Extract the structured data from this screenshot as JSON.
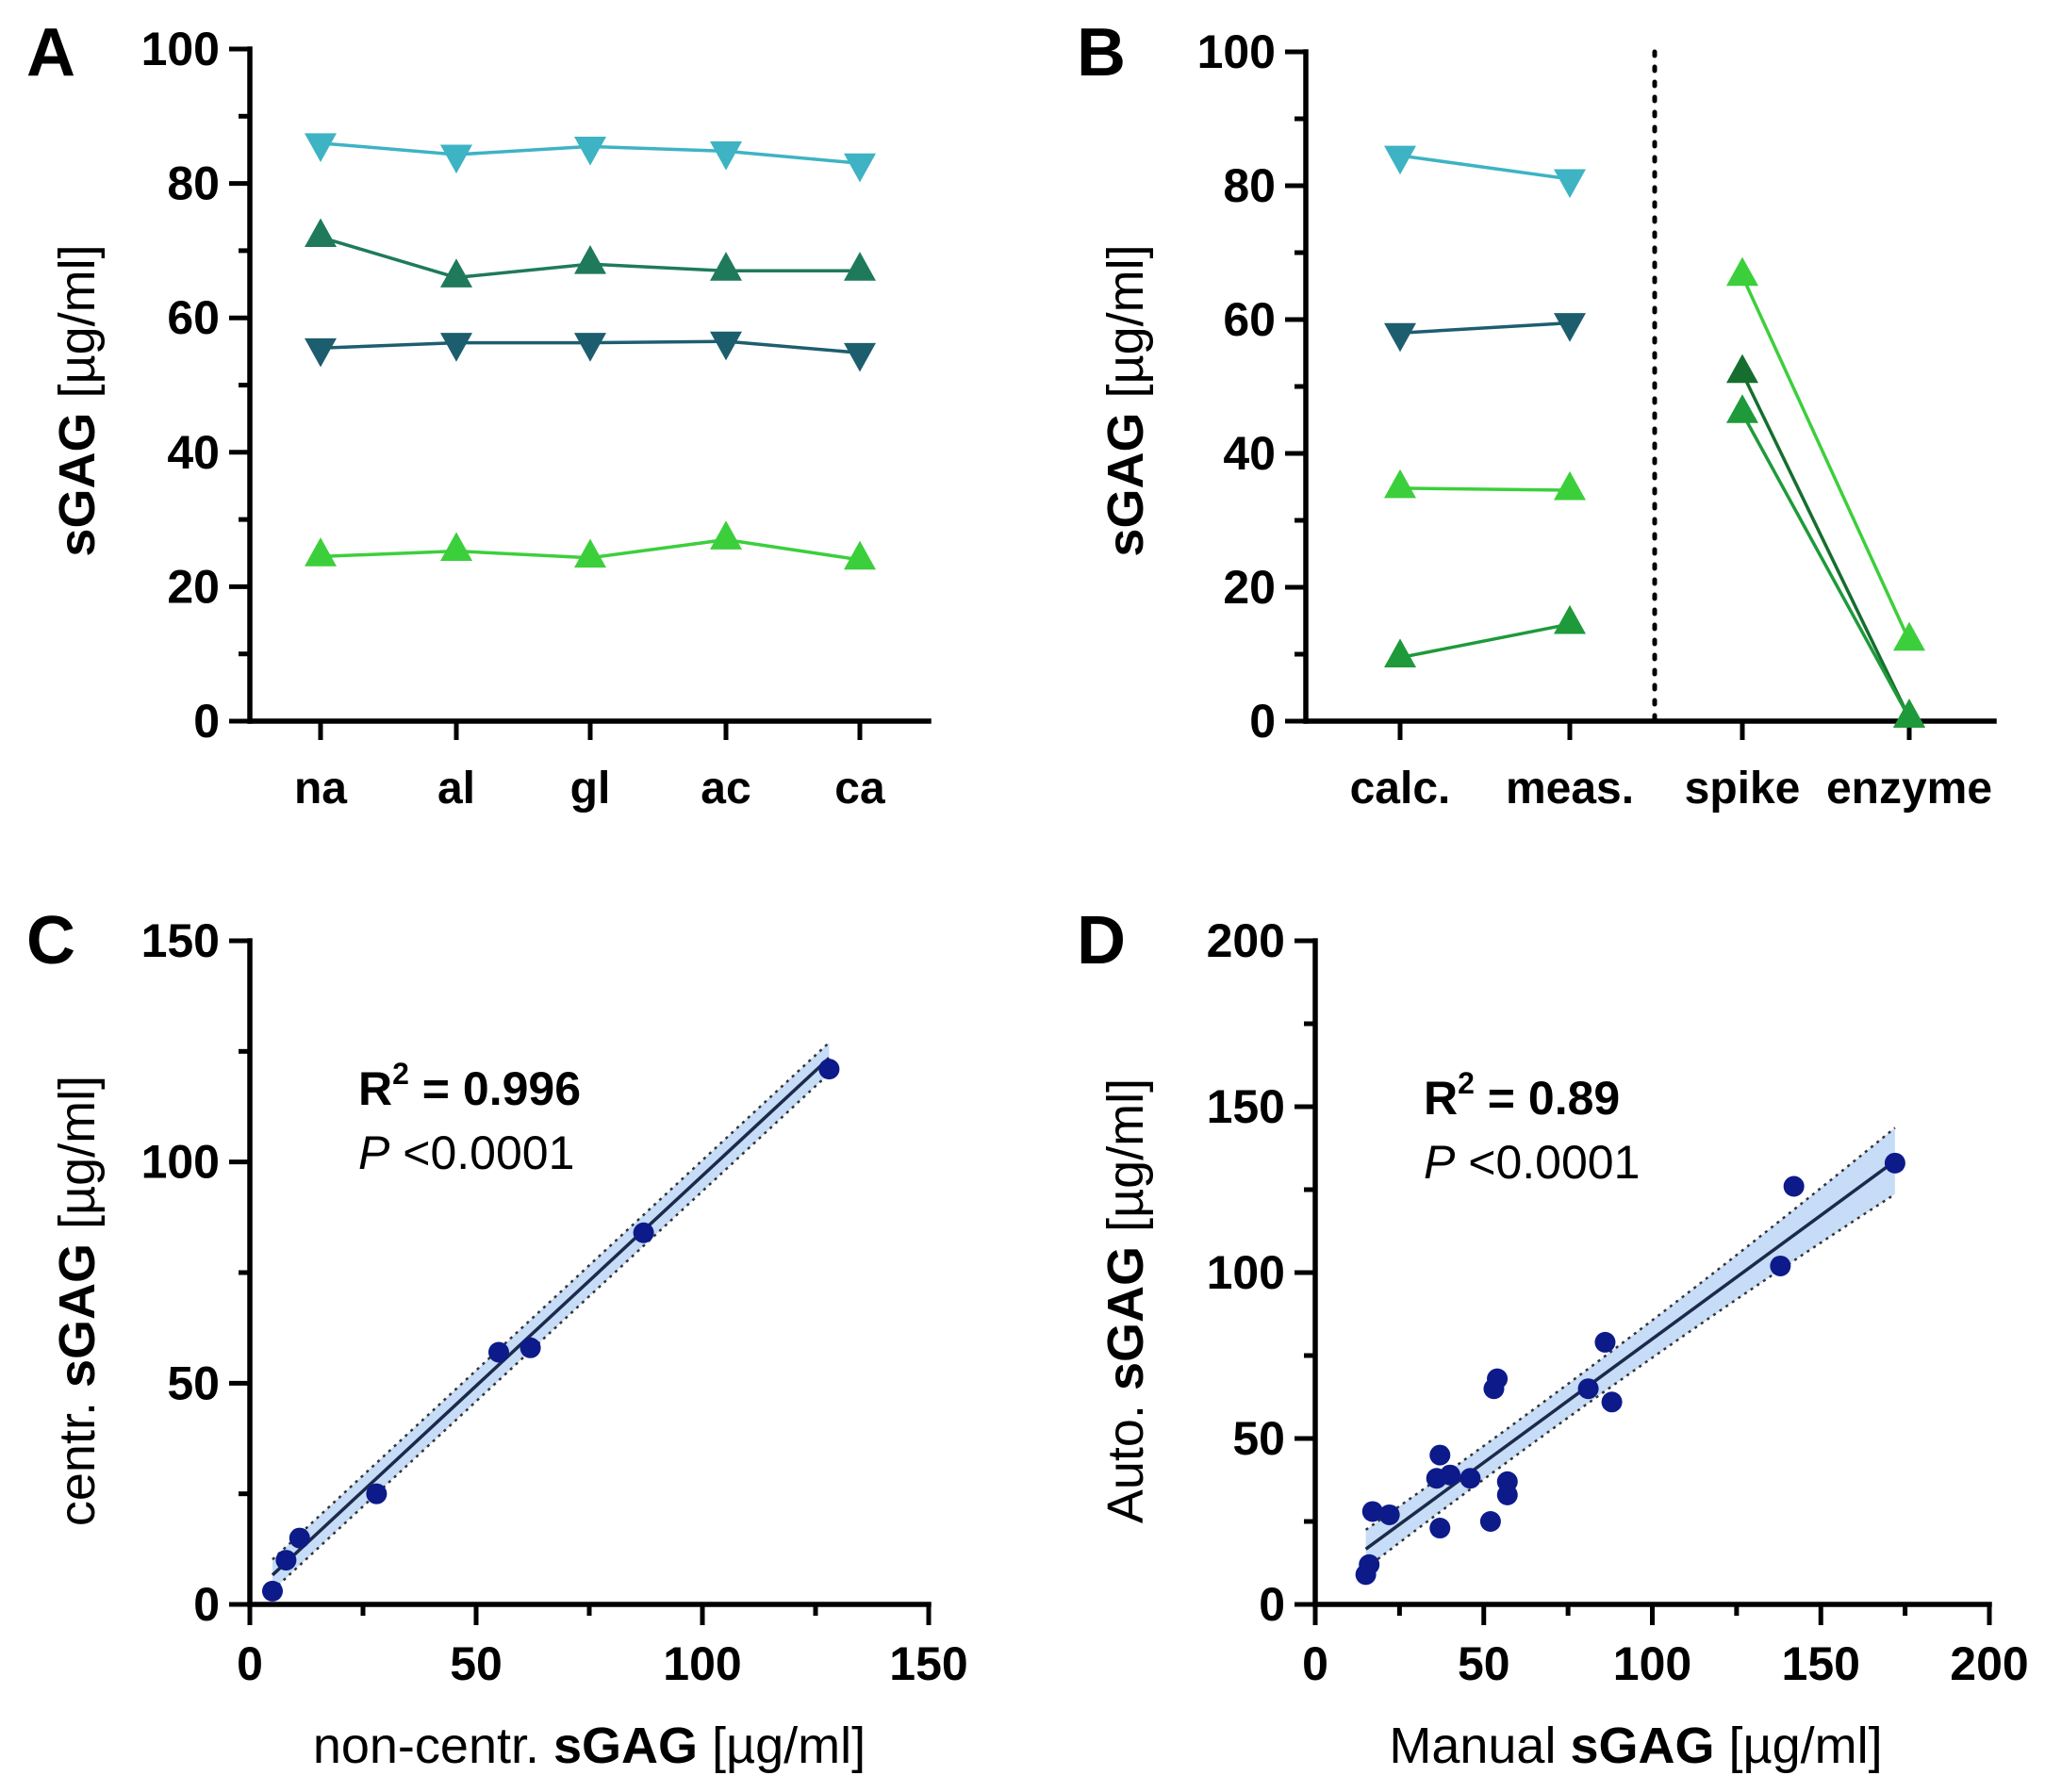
{
  "chart_data": [
    {
      "panel": "A",
      "type": "line",
      "ylabel_bold": "sGAG",
      "ylabel_rest": " [µg/ml]",
      "ylim": [
        0,
        100
      ],
      "yticks": [
        0,
        20,
        40,
        60,
        80,
        100
      ],
      "categories": [
        "na",
        "al",
        "gl",
        "ac",
        "ca"
      ],
      "series": [
        {
          "marker": "down",
          "color": "#3db3c4",
          "values": [
            86,
            84.3,
            85.5,
            84.8,
            83
          ]
        },
        {
          "marker": "up",
          "color": "#1f7a5c",
          "values": [
            72,
            66,
            68,
            67,
            67
          ]
        },
        {
          "marker": "down",
          "color": "#1d5e6e",
          "values": [
            55.5,
            56.3,
            56.3,
            56.5,
            54.8
          ]
        },
        {
          "marker": "up",
          "color": "#3ccf3c",
          "values": [
            24.5,
            25.3,
            24.3,
            27,
            24
          ]
        }
      ]
    },
    {
      "panel": "B",
      "type": "line",
      "ylabel_bold": "sGAG",
      "ylabel_rest": " [µg/ml]",
      "ylim": [
        0,
        100
      ],
      "yticks": [
        0,
        20,
        40,
        60,
        80,
        100
      ],
      "categories": [
        "calc.",
        "meas.",
        "spike",
        "enzyme"
      ],
      "divider": "dotted vertical line between meas. and spike",
      "series": [
        {
          "marker": "down",
          "color": "#3db3c4",
          "points": [
            [
              0,
              84.5
            ],
            [
              1,
              81
            ]
          ]
        },
        {
          "marker": "down",
          "color": "#1d5e6e",
          "points": [
            [
              0,
              58
            ],
            [
              1,
              59.5
            ]
          ]
        },
        {
          "marker": "up",
          "color": "#3ccf3c",
          "points": [
            [
              0,
              34.8
            ],
            [
              1,
              34.5
            ]
          ]
        },
        {
          "marker": "up",
          "color": "#1e9a3a",
          "points": [
            [
              0,
              9.5
            ],
            [
              1,
              14.5
            ]
          ]
        },
        {
          "marker": "up",
          "color": "#3ccf3c",
          "points": [
            [
              2,
              66.5
            ],
            [
              3,
              12
            ]
          ]
        },
        {
          "marker": "up",
          "color": "#156e2e",
          "points": [
            [
              2,
              52
            ],
            [
              3,
              0.5
            ]
          ]
        },
        {
          "marker": "up",
          "color": "#1e9a3a",
          "points": [
            [
              2,
              46
            ],
            [
              3,
              0.5
            ]
          ]
        }
      ]
    },
    {
      "panel": "C",
      "type": "scatter",
      "xlabel_plain": "non-centr. ",
      "xlabel_bold": "sGAG",
      "xlabel_rest": " [µg/ml]",
      "ylabel_plain": "centr. ",
      "ylabel_bold": "sGAG",
      "ylabel_rest": " [µg/ml]",
      "xlim": [
        0,
        150
      ],
      "ylim": [
        0,
        150
      ],
      "xticks": [
        0,
        50,
        100,
        150
      ],
      "yticks": [
        0,
        50,
        100,
        150
      ],
      "annotation": {
        "r2_label": "R",
        "r2_sup": "2",
        "r2_value": " = 0.996",
        "p_label": "P",
        "p_value": " <0.0001"
      },
      "points": [
        [
          5,
          3
        ],
        [
          8,
          10
        ],
        [
          11,
          15
        ],
        [
          28,
          25
        ],
        [
          55,
          57
        ],
        [
          62,
          58
        ],
        [
          87,
          84
        ],
        [
          128,
          121
        ]
      ],
      "fit": {
        "x0": 5,
        "x1": 128,
        "slope": 0.95,
        "intercept": 1.9,
        "band_halfwidth": 3.5
      },
      "marker_color": "#0d1a8a",
      "band_color": "#c6dcf7"
    },
    {
      "panel": "D",
      "type": "scatter",
      "xlabel_plain": "Manual ",
      "xlabel_bold": "sGAG",
      "xlabel_rest": " [µg/ml]",
      "ylabel_plain": "Auto. ",
      "ylabel_bold": "sGAG",
      "ylabel_rest": " [µg/ml]",
      "xlim": [
        0,
        200
      ],
      "ylim": [
        0,
        200
      ],
      "xticks": [
        0,
        50,
        100,
        150,
        200
      ],
      "yticks": [
        0,
        50,
        100,
        150,
        200
      ],
      "annotation": {
        "r2_label": "R",
        "r2_sup": "2",
        "r2_value": " = 0.89",
        "p_label": "P",
        "p_value": " <0.0001"
      },
      "points": [
        [
          15,
          9
        ],
        [
          16,
          12
        ],
        [
          17,
          28
        ],
        [
          22,
          27
        ],
        [
          36,
          38
        ],
        [
          37,
          45
        ],
        [
          37,
          23
        ],
        [
          40,
          39
        ],
        [
          46,
          38
        ],
        [
          52,
          25
        ],
        [
          53,
          65
        ],
        [
          54,
          68
        ],
        [
          57,
          37
        ],
        [
          57,
          33
        ],
        [
          81,
          65
        ],
        [
          86,
          79
        ],
        [
          88,
          61
        ],
        [
          138,
          102
        ],
        [
          142,
          126
        ],
        [
          172,
          133
        ]
      ],
      "fit": {
        "x0": 15,
        "x1": 172,
        "slope": 0.745,
        "intercept": 5.5,
        "band_ends": 10,
        "band_mid": 5,
        "band_mid_x": 60
      },
      "marker_color": "#0d1a8a",
      "band_color": "#c6dcf7"
    }
  ]
}
